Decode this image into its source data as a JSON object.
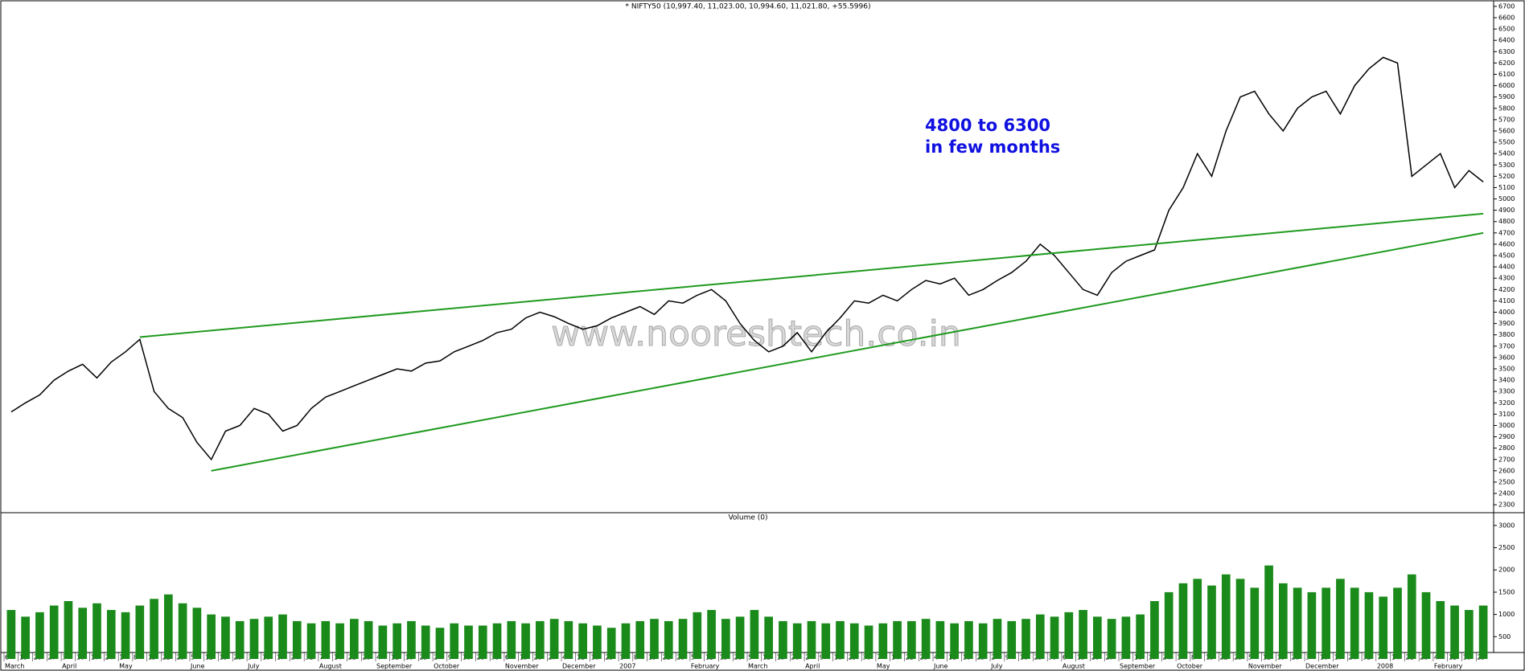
{
  "chart_data": [
    {
      "type": "line",
      "title": "* NIFTY50 (10,997.40, 11,023.00, 10,994.60, 11,021.80, +55.5996)",
      "color": "#000000",
      "annotation": [
        "4800 to 6300",
        "in few months"
      ],
      "watermark": "www.nooreshtech.co.in",
      "categories": [
        "6",
        "13",
        "20",
        "27",
        "3",
        "10",
        "17",
        "24",
        "1",
        "8",
        "15",
        "22",
        "29",
        "5",
        "12",
        "19",
        "26",
        "3",
        "10",
        "17",
        "24",
        "31",
        "7",
        "14",
        "21",
        "28",
        "4",
        "11",
        "18",
        "25",
        "2",
        "9",
        "16",
        "23",
        "30",
        "6",
        "13",
        "20",
        "27",
        "4",
        "11",
        "18",
        "25",
        "1",
        "8",
        "15",
        "22",
        "29",
        "5",
        "12",
        "19",
        "26",
        "5",
        "12",
        "19",
        "26",
        "2",
        "9",
        "16",
        "23",
        "30",
        "7",
        "14",
        "21",
        "28",
        "4",
        "11",
        "18",
        "25",
        "2",
        "9",
        "16",
        "23",
        "30",
        "6",
        "13",
        "20",
        "27",
        "3",
        "10",
        "17",
        "24",
        "1",
        "8",
        "15",
        "22",
        "29",
        "5",
        "12",
        "19",
        "26",
        "3",
        "10",
        "17",
        "24",
        "31",
        "7",
        "14",
        "21",
        "28",
        "4",
        "11",
        "18",
        "25"
      ],
      "months": [
        "March",
        null,
        null,
        null,
        "April",
        null,
        null,
        null,
        "May",
        null,
        null,
        null,
        null,
        "June",
        null,
        null,
        null,
        "July",
        null,
        null,
        null,
        null,
        "August",
        null,
        null,
        null,
        "September",
        null,
        null,
        null,
        "October",
        null,
        null,
        null,
        null,
        "November",
        null,
        null,
        null,
        "December",
        null,
        null,
        null,
        "2007",
        null,
        null,
        null,
        null,
        "February",
        null,
        null,
        null,
        "March",
        null,
        null,
        null,
        "April",
        null,
        null,
        null,
        null,
        "May",
        null,
        null,
        null,
        "June",
        null,
        null,
        null,
        "July",
        null,
        null,
        null,
        null,
        "August",
        null,
        null,
        null,
        "September",
        null,
        null,
        null,
        "October",
        null,
        null,
        null,
        null,
        "November",
        null,
        null,
        null,
        "December",
        null,
        null,
        null,
        null,
        "2008",
        null,
        null,
        null,
        "February",
        null,
        null,
        null
      ],
      "values": [
        3120,
        3200,
        3270,
        3400,
        3480,
        3540,
        3420,
        3560,
        3650,
        3760,
        3300,
        3150,
        3070,
        2850,
        2700,
        2950,
        3000,
        3150,
        3100,
        2950,
        3000,
        3150,
        3250,
        3300,
        3350,
        3400,
        3450,
        3500,
        3480,
        3550,
        3570,
        3650,
        3700,
        3750,
        3820,
        3850,
        3950,
        4000,
        3960,
        3900,
        3850,
        3880,
        3950,
        4000,
        4050,
        3980,
        4100,
        4080,
        4150,
        4200,
        4100,
        3900,
        3750,
        3650,
        3700,
        3820,
        3650,
        3820,
        3950,
        4100,
        4080,
        4150,
        4100,
        4200,
        4280,
        4250,
        4300,
        4150,
        4200,
        4280,
        4350,
        4450,
        4600,
        4500,
        4350,
        4200,
        4150,
        4350,
        4450,
        4500,
        4550,
        4900,
        5100,
        5400,
        5200,
        5600,
        5900,
        5950,
        5750,
        5600,
        5800,
        5900,
        5950,
        5750,
        6000,
        6150,
        6250,
        6200,
        5200,
        5300,
        5400,
        5100,
        5250,
        5150
      ],
      "trendlines": [
        {
          "color": "#1f9a1f",
          "points": [
            {
              "x": 9,
              "y": 3780
            },
            {
              "x": 103,
              "y": 4870
            }
          ]
        },
        {
          "color": "#1f9a1f",
          "points": [
            {
              "x": 14,
              "y": 2600
            },
            {
              "x": 103,
              "y": 4700
            }
          ]
        }
      ],
      "ylim": [
        2230,
        6735
      ],
      "yticks": [
        2300,
        2400,
        2500,
        2600,
        2700,
        2800,
        2900,
        3000,
        3100,
        3200,
        3300,
        3400,
        3500,
        3600,
        3700,
        3800,
        3900,
        4000,
        4100,
        4200,
        4300,
        4400,
        4500,
        4600,
        4700,
        4800,
        4900,
        5000,
        5100,
        5200,
        5300,
        5400,
        5500,
        5600,
        5700,
        5800,
        5900,
        6000,
        6100,
        6200,
        6300,
        6400,
        6500,
        6600,
        6700
      ]
    },
    {
      "type": "bar",
      "title": "Volume (0)",
      "color": "#1a8a1a",
      "values": [
        1100,
        950,
        1050,
        1200,
        1300,
        1150,
        1250,
        1100,
        1050,
        1200,
        1350,
        1450,
        1250,
        1150,
        1000,
        950,
        850,
        900,
        950,
        1000,
        850,
        800,
        850,
        800,
        900,
        850,
        750,
        800,
        850,
        750,
        700,
        800,
        750,
        750,
        800,
        850,
        800,
        850,
        900,
        850,
        800,
        750,
        700,
        800,
        850,
        900,
        850,
        900,
        1050,
        1100,
        900,
        950,
        1100,
        950,
        850,
        800,
        850,
        800,
        850,
        800,
        750,
        800,
        850,
        850,
        900,
        850,
        800,
        850,
        800,
        900,
        850,
        900,
        1000,
        950,
        1050,
        1100,
        950,
        900,
        950,
        1000,
        1300,
        1500,
        1700,
        1800,
        1650,
        1900,
        1800,
        1600,
        2100,
        1700,
        1600,
        1500,
        1600,
        1800,
        1600,
        1500,
        1400,
        1600,
        1900,
        1500,
        1300,
        1200,
        1100,
        1200
      ],
      "ylim": [
        0,
        3250
      ],
      "yticks": [
        500,
        1000,
        1500,
        2000,
        2500,
        3000
      ]
    }
  ]
}
